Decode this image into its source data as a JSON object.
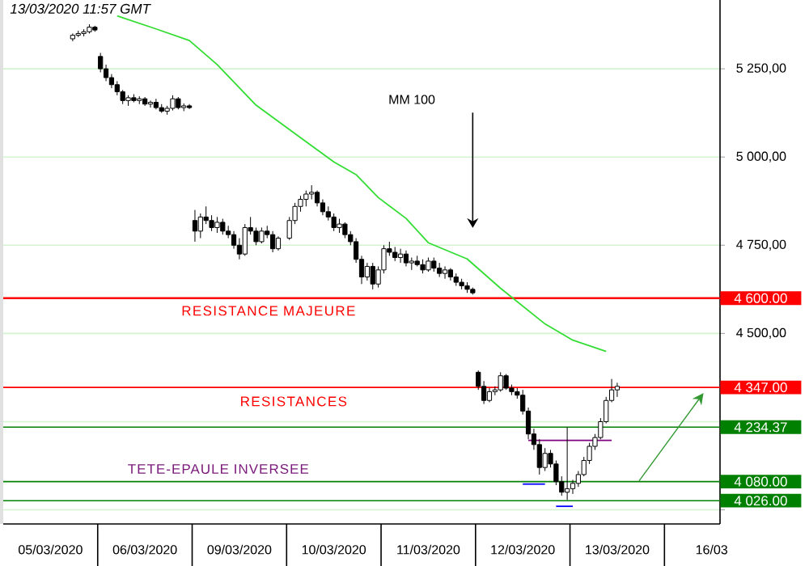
{
  "chart_data": {
    "type": "candlestick",
    "title": "13/03/2020 11:57 GMT",
    "categories": [
      null,
      null,
      null,
      null,
      null,
      null,
      null,
      null,
      "05/03/2020",
      null,
      null,
      null,
      null,
      null,
      null,
      null,
      null,
      null,
      null,
      null,
      null,
      null,
      null,
      null,
      null,
      "06/03/2020",
      null,
      null,
      null,
      null,
      null,
      null,
      null,
      null,
      null,
      null,
      null,
      null,
      null,
      null,
      null,
      null,
      "09/03/2020",
      null,
      null,
      null,
      null,
      null,
      null,
      null,
      null,
      null,
      null,
      null,
      null,
      null,
      null,
      null,
      null,
      "10/03/2020",
      null,
      null,
      null,
      null,
      null,
      null,
      null,
      null,
      null,
      null,
      null,
      null,
      null,
      null,
      null,
      null,
      "11/03/2020",
      null,
      null,
      null,
      null,
      null,
      null,
      null,
      null,
      null,
      null,
      null,
      null,
      null,
      null,
      null,
      null,
      "12/03/2020",
      null,
      null,
      null,
      null,
      null,
      null,
      null,
      null,
      null,
      null,
      null,
      null,
      null,
      null,
      null,
      null,
      "13/03/2020",
      null,
      null,
      null,
      null,
      null,
      null,
      null,
      null,
      null,
      null,
      null,
      null,
      null,
      null,
      null,
      null,
      "16/03",
      null
    ],
    "ohlc": [
      null,
      null,
      null,
      null,
      null,
      null,
      null,
      null,
      null,
      null,
      null,
      null,
      [
        5335,
        5350,
        5328,
        5345
      ],
      [
        5345,
        5358,
        5340,
        5350
      ],
      [
        5350,
        5362,
        5342,
        5355
      ],
      [
        5355,
        5376,
        5350,
        5368
      ],
      [
        5368,
        5372,
        5355,
        5360
      ],
      [
        5285,
        5295,
        5240,
        5250
      ],
      [
        5250,
        5262,
        5215,
        5225
      ],
      [
        5225,
        5235,
        5195,
        5205
      ],
      [
        5205,
        5215,
        5175,
        5185
      ],
      [
        5185,
        5190,
        5150,
        5160
      ],
      [
        5160,
        5175,
        5145,
        5168
      ],
      [
        5168,
        5178,
        5155,
        5160
      ],
      [
        5160,
        5172,
        5150,
        5165
      ],
      [
        5165,
        5170,
        5145,
        5150
      ],
      [
        5150,
        5160,
        5140,
        5155
      ],
      [
        5155,
        5165,
        5135,
        5140
      ],
      [
        5140,
        5150,
        5125,
        5130
      ],
      [
        5130,
        5145,
        5120,
        5138
      ],
      [
        5138,
        5175,
        5132,
        5165
      ],
      [
        5165,
        5170,
        5135,
        5140
      ],
      [
        5140,
        5152,
        5130,
        5145
      ],
      [
        5145,
        5150,
        5136,
        5140
      ],
      [
        4820,
        4850,
        4760,
        4790
      ],
      [
        4790,
        4840,
        4770,
        4830
      ],
      [
        4830,
        4860,
        4810,
        4820
      ],
      [
        4820,
        4835,
        4790,
        4800
      ],
      [
        4800,
        4830,
        4785,
        4815
      ],
      [
        4815,
        4825,
        4780,
        4790
      ],
      [
        4790,
        4805,
        4770,
        4780
      ],
      [
        4780,
        4790,
        4740,
        4750
      ],
      [
        4750,
        4770,
        4710,
        4725
      ],
      [
        4725,
        4810,
        4720,
        4800
      ],
      [
        4800,
        4830,
        4780,
        4790
      ],
      [
        4790,
        4800,
        4750,
        4760
      ],
      [
        4760,
        4800,
        4755,
        4790
      ],
      [
        4790,
        4805,
        4770,
        4780
      ],
      [
        4780,
        4790,
        4730,
        4740
      ],
      [
        4740,
        4775,
        4735,
        4770
      ],
      null,
      [
        4770,
        4830,
        4765,
        4820
      ],
      [
        4820,
        4870,
        4810,
        4860
      ],
      [
        4860,
        4890,
        4845,
        4880
      ],
      [
        4880,
        4905,
        4860,
        4895
      ],
      [
        4895,
        4920,
        4880,
        4900
      ],
      [
        4900,
        4905,
        4860,
        4870
      ],
      [
        4870,
        4880,
        4835,
        4845
      ],
      [
        4845,
        4860,
        4820,
        4830
      ],
      [
        4830,
        4840,
        4790,
        4800
      ],
      [
        4800,
        4825,
        4785,
        4810
      ],
      [
        4810,
        4815,
        4770,
        4780
      ],
      [
        4780,
        4790,
        4750,
        4760
      ],
      [
        4760,
        4770,
        4700,
        4710
      ],
      [
        4710,
        4720,
        4640,
        4660
      ],
      [
        4660,
        4700,
        4650,
        4690
      ],
      [
        4690,
        4700,
        4625,
        4640
      ],
      [
        4640,
        4690,
        4630,
        4680
      ],
      [
        4680,
        4750,
        4670,
        4740
      ],
      [
        4740,
        4760,
        4720,
        4730
      ],
      [
        4730,
        4745,
        4705,
        4715
      ],
      [
        4715,
        4740,
        4700,
        4725
      ],
      [
        4725,
        4735,
        4690,
        4700
      ],
      [
        4700,
        4715,
        4680,
        4705
      ],
      [
        4705,
        4720,
        4690,
        4695
      ],
      [
        4695,
        4710,
        4670,
        4680
      ],
      [
        4680,
        4715,
        4675,
        4705
      ],
      [
        4705,
        4715,
        4675,
        4685
      ],
      [
        4685,
        4700,
        4660,
        4670
      ],
      [
        4670,
        4690,
        4655,
        4680
      ],
      [
        4680,
        4685,
        4650,
        4660
      ],
      [
        4660,
        4670,
        4635,
        4645
      ],
      [
        4645,
        4655,
        4625,
        4635
      ],
      [
        4635,
        4645,
        4615,
        4625
      ],
      [
        4625,
        4630,
        4610,
        4615
      ],
      [
        4390,
        4395,
        4340,
        4350
      ],
      [
        4350,
        4365,
        4300,
        4310
      ],
      [
        4310,
        4345,
        4305,
        4335
      ],
      [
        4335,
        4350,
        4325,
        4340
      ],
      [
        4340,
        4390,
        4335,
        4380
      ],
      [
        4380,
        4385,
        4340,
        4345
      ],
      [
        4345,
        4355,
        4325,
        4335
      ],
      [
        4335,
        4345,
        4315,
        4325
      ],
      [
        4325,
        4340,
        4270,
        4280
      ],
      [
        4280,
        4290,
        4200,
        4215
      ],
      [
        4215,
        4230,
        4170,
        4185
      ],
      [
        4185,
        4200,
        4100,
        4120
      ],
      [
        4120,
        4175,
        4110,
        4160
      ],
      [
        4160,
        4170,
        4120,
        4130
      ],
      [
        4130,
        4140,
        4070,
        4080
      ],
      [
        4080,
        4095,
        4040,
        4050
      ],
      [
        4050,
        4234,
        4028,
        4060
      ],
      [
        4060,
        4085,
        4045,
        4075
      ],
      [
        4075,
        4110,
        4065,
        4100
      ],
      [
        4100,
        4150,
        4095,
        4140
      ],
      [
        4140,
        4190,
        4130,
        4180
      ],
      [
        4180,
        4215,
        4170,
        4205
      ],
      [
        4205,
        4260,
        4200,
        4250
      ],
      [
        4250,
        4320,
        4245,
        4310
      ],
      [
        4310,
        4371,
        4305,
        4340
      ],
      [
        4340,
        4360,
        4320,
        4350
      ],
      null,
      null,
      null,
      null,
      null,
      null,
      null,
      null,
      null,
      null,
      null,
      null,
      null,
      null,
      null,
      null,
      null,
      null
    ],
    "series": [
      {
        "type": "line",
        "color": "#33dd33",
        "values": [
          null,
          null,
          null,
          null,
          null,
          null,
          null,
          null,
          null,
          null,
          null,
          null,
          null,
          null,
          null,
          null,
          null,
          null,
          null,
          null,
          5400,
          null,
          null,
          null,
          null,
          null,
          null,
          5363,
          null,
          null,
          null,
          null,
          null,
          5330,
          null,
          null,
          null,
          null,
          5262,
          null,
          null,
          null,
          null,
          null,
          null,
          5147,
          null,
          null,
          null,
          null,
          null,
          null,
          null,
          5055,
          null,
          null,
          null,
          null,
          null,
          4986,
          null,
          null,
          null,
          4950,
          null,
          null,
          null,
          4885,
          null,
          null,
          null,
          null,
          4826,
          null,
          null,
          null,
          4757,
          null,
          null,
          null,
          null,
          null,
          null,
          4711,
          null,
          null,
          null,
          null,
          null,
          4628,
          null,
          null,
          null,
          null,
          null,
          null,
          null,
          4527,
          null,
          null,
          null,
          null,
          4481,
          null,
          null,
          null,
          null,
          null,
          4449,
          null,
          null,
          null,
          null,
          null,
          null,
          null,
          null,
          null,
          null,
          null,
          null,
          null,
          null,
          null,
          null,
          null,
          null,
          null,
          null
        ]
      },
      {
        "type": "line",
        "color": "#800080",
        "values": [
          null,
          null,
          null,
          null,
          null,
          null,
          null,
          null,
          null,
          null,
          null,
          null,
          null,
          null,
          null,
          null,
          null,
          null,
          null,
          null,
          null,
          null,
          null,
          null,
          null,
          null,
          null,
          null,
          null,
          null,
          null,
          null,
          null,
          null,
          null,
          null,
          null,
          null,
          null,
          null,
          null,
          null,
          null,
          null,
          null,
          null,
          null,
          null,
          null,
          null,
          null,
          null,
          null,
          null,
          null,
          null,
          null,
          null,
          null,
          null,
          null,
          null,
          null,
          null,
          null,
          null,
          null,
          null,
          null,
          null,
          null,
          null,
          null,
          null,
          null,
          null,
          null,
          null,
          null,
          null,
          null,
          null,
          null,
          null,
          null,
          null,
          null,
          null,
          null,
          null,
          null,
          null,
          null,
          null,
          4197,
          null,
          null,
          null,
          null,
          null,
          null,
          null,
          null,
          null,
          null,
          null,
          null,
          null,
          null,
          4197,
          null,
          null,
          null,
          null,
          null,
          null,
          null,
          null,
          null,
          null,
          null,
          null,
          null,
          null,
          null,
          null,
          null,
          null,
          null
        ]
      },
      {
        "type": "line",
        "color": "#0000ff",
        "values": [
          null,
          null,
          null,
          null,
          null,
          null,
          null,
          null,
          null,
          null,
          null,
          null,
          null,
          null,
          null,
          null,
          null,
          null,
          null,
          null,
          null,
          null,
          null,
          null,
          null,
          null,
          null,
          null,
          null,
          null,
          null,
          null,
          null,
          null,
          null,
          null,
          null,
          null,
          null,
          null,
          null,
          null,
          null,
          null,
          null,
          null,
          null,
          null,
          null,
          null,
          null,
          null,
          null,
          null,
          null,
          null,
          null,
          null,
          null,
          null,
          null,
          null,
          null,
          null,
          null,
          null,
          null,
          null,
          null,
          null,
          null,
          null,
          null,
          null,
          null,
          null,
          null,
          null,
          null,
          null,
          null,
          null,
          null,
          null,
          null,
          null,
          null,
          null,
          null,
          null,
          null,
          null,
          null,
          4073,
          null,
          null,
          null,
          4073,
          null,
          null,
          null,
          null,
          null,
          null,
          null,
          null,
          null,
          null,
          null,
          null,
          null,
          null,
          null,
          null,
          null,
          null,
          null,
          null,
          null,
          null,
          null,
          null,
          null,
          null,
          null,
          null,
          null,
          null,
          null
        ]
      },
      {
        "type": "line",
        "color": "#0000ff",
        "values": [
          null,
          null,
          null,
          null,
          null,
          null,
          null,
          null,
          null,
          null,
          null,
          null,
          null,
          null,
          null,
          null,
          null,
          null,
          null,
          null,
          null,
          null,
          null,
          null,
          null,
          null,
          null,
          null,
          null,
          null,
          null,
          null,
          null,
          null,
          null,
          null,
          null,
          null,
          null,
          null,
          null,
          null,
          null,
          null,
          null,
          null,
          null,
          null,
          null,
          null,
          null,
          null,
          null,
          null,
          null,
          null,
          null,
          null,
          null,
          null,
          null,
          null,
          null,
          null,
          null,
          null,
          null,
          null,
          null,
          null,
          null,
          null,
          null,
          null,
          null,
          null,
          null,
          null,
          null,
          null,
          null,
          null,
          null,
          null,
          null,
          null,
          null,
          null,
          null,
          null,
          null,
          null,
          null,
          null,
          null,
          null,
          null,
          null,
          null,
          4010,
          null,
          null,
          4010,
          null,
          null,
          null,
          null,
          null,
          null,
          null,
          null,
          null,
          null,
          null,
          null,
          null,
          null,
          null,
          null,
          null,
          null,
          null,
          null,
          null,
          null,
          null,
          null,
          null,
          null
        ]
      }
    ],
    "ylim": [
      3960,
      5445
    ],
    "yticks": [
      {
        "value": 4000,
        "label": null
      },
      {
        "value": 4250,
        "label": null
      },
      {
        "value": 4500,
        "label": "4 500,00"
      },
      {
        "value": 4750,
        "label": "4 750,00"
      },
      {
        "value": 5000,
        "label": "5 000,00"
      },
      {
        "value": 5250,
        "label": "5 250,00"
      }
    ],
    "grid": "y",
    "ref_lines": [
      {
        "axis": "y",
        "value": 4600,
        "label": "4 600.00",
        "color": "#ff0000"
      },
      {
        "axis": "y",
        "value": 4347,
        "label": "4 347.00",
        "color": "#ff0000"
      },
      {
        "axis": "y",
        "value": 4234.37,
        "label": "4 234.37",
        "color": "#008000"
      },
      {
        "axis": "y",
        "value": 4080,
        "label": "4 080.00",
        "color": "#008000"
      },
      {
        "axis": "y",
        "value": 4026,
        "label": "4 026.00",
        "color": "#008000"
      }
    ],
    "annotations": [
      "MM 100",
      "RESISTANCE MAJEURE",
      "RESISTANCES",
      "TETE-EPAULE INVERSEE"
    ]
  }
}
